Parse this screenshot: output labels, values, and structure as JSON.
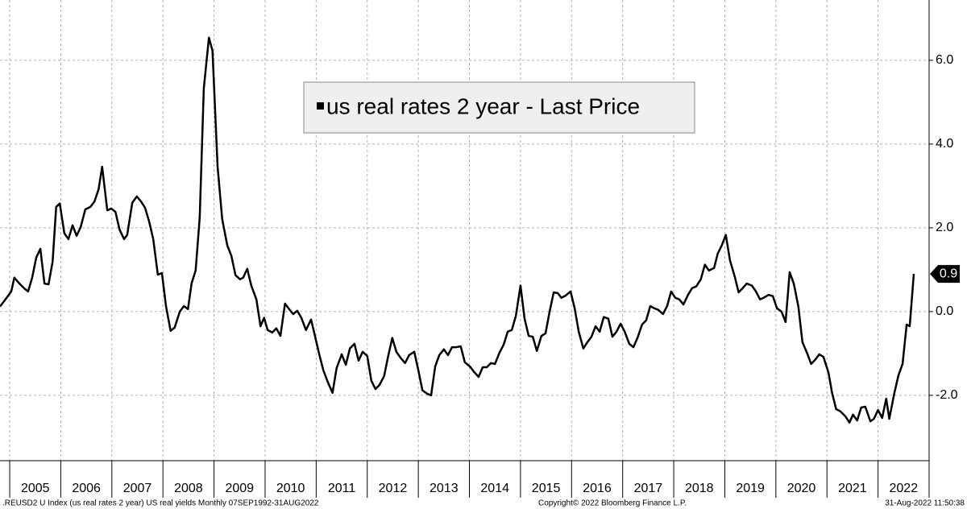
{
  "chart_data": {
    "type": "line",
    "xlim": [
      2004.81,
      2023.0
    ],
    "ylim": [
      -3.56,
      7.44
    ],
    "xticks": [
      2005,
      2006,
      2007,
      2008,
      2009,
      2010,
      2011,
      2012,
      2013,
      2014,
      2015,
      2016,
      2017,
      2018,
      2019,
      2020,
      2021,
      2022
    ],
    "yticks": [
      {
        "value": 6,
        "label": "6.0"
      },
      {
        "value": 4,
        "label": "4.0"
      },
      {
        "value": 2,
        "label": "2.0"
      },
      {
        "value": 0,
        "label": "0.0"
      },
      {
        "value": -2,
        "label": "-2.0"
      }
    ],
    "grid": true,
    "legend": "top",
    "x": [
      2004.81,
      2004.94,
      2005.03,
      2005.09,
      2005.19,
      2005.28,
      2005.36,
      2005.44,
      2005.52,
      2005.6,
      2005.68,
      2005.76,
      2005.84,
      2005.91,
      2005.98,
      2006.07,
      2006.15,
      2006.23,
      2006.31,
      2006.39,
      2006.48,
      2006.58,
      2006.66,
      2006.74,
      2006.81,
      2006.91,
      2006.99,
      2007.07,
      2007.15,
      2007.24,
      2007.3,
      2007.4,
      2007.49,
      2007.57,
      2007.65,
      2007.73,
      2007.81,
      2007.9,
      2007.98,
      2008.06,
      2008.15,
      2008.23,
      2008.33,
      2008.41,
      2008.49,
      2008.56,
      2008.64,
      2008.72,
      2008.8,
      2008.9,
      2008.97,
      2009.07,
      2009.16,
      2009.26,
      2009.34,
      2009.42,
      2009.51,
      2009.57,
      2009.65,
      2009.73,
      2009.83,
      2009.91,
      2009.98,
      2010.05,
      2010.14,
      2010.22,
      2010.3,
      2010.39,
      2010.47,
      2010.55,
      2010.63,
      2010.71,
      2010.8,
      2010.9,
      2010.98,
      2011.06,
      2011.14,
      2011.23,
      2011.32,
      2011.4,
      2011.5,
      2011.58,
      2011.66,
      2011.75,
      2011.83,
      2011.91,
      2012.0,
      2012.08,
      2012.16,
      2012.24,
      2012.33,
      2012.41,
      2012.49,
      2012.57,
      2012.65,
      2012.74,
      2012.82,
      2012.92,
      2013.0,
      2013.08,
      2013.17,
      2013.25,
      2013.33,
      2013.41,
      2013.5,
      2013.58,
      2013.66,
      2013.74,
      2013.83,
      2013.91,
      2014.01,
      2014.09,
      2014.18,
      2014.26,
      2014.34,
      2014.42,
      2014.5,
      2014.59,
      2014.67,
      2014.75,
      2014.83,
      2014.91,
      2015.0,
      2015.08,
      2015.16,
      2015.24,
      2015.32,
      2015.41,
      2015.49,
      2015.57,
      2015.65,
      2015.73,
      2015.8,
      2015.88,
      2015.98,
      2016.06,
      2016.14,
      2016.23,
      2016.31,
      2016.39,
      2016.47,
      2016.55,
      2016.63,
      2016.72,
      2016.8,
      2016.88,
      2016.96,
      2017.04,
      2017.13,
      2017.21,
      2017.29,
      2017.38,
      2017.46,
      2017.54,
      2017.62,
      2017.7,
      2017.79,
      2017.87,
      2017.95,
      2018.03,
      2018.11,
      2018.19,
      2018.28,
      2018.36,
      2018.44,
      2018.53,
      2018.61,
      2018.69,
      2018.79,
      2018.86,
      2018.94,
      2019.02,
      2019.1,
      2019.2,
      2019.27,
      2019.35,
      2019.43,
      2019.53,
      2019.61,
      2019.69,
      2019.76,
      2019.86,
      2019.94,
      2020.02,
      2020.11,
      2020.19,
      2020.27,
      2020.35,
      2020.44,
      2020.52,
      2020.62,
      2020.69,
      2020.77,
      2020.85,
      2020.93,
      2021.03,
      2021.1,
      2021.18,
      2021.26,
      2021.36,
      2021.44,
      2021.51,
      2021.59,
      2021.67,
      2021.75,
      2021.85,
      2021.92,
      2022.0,
      2022.08,
      2022.16,
      2022.22,
      2022.32,
      2022.4,
      2022.48,
      2022.56,
      2022.62,
      2022.7
    ],
    "series": [
      {
        "name": "us real rates 2 year - Last Price",
        "color": "#000000",
        "values": [
          0.12,
          0.33,
          0.48,
          0.81,
          0.67,
          0.56,
          0.48,
          0.81,
          1.29,
          1.5,
          0.67,
          0.65,
          1.19,
          2.5,
          2.58,
          1.87,
          1.73,
          2.06,
          1.81,
          2.02,
          2.44,
          2.5,
          2.63,
          2.92,
          3.46,
          2.42,
          2.46,
          2.38,
          1.96,
          1.73,
          1.83,
          2.6,
          2.75,
          2.63,
          2.48,
          2.15,
          1.73,
          0.88,
          0.92,
          0.13,
          -0.46,
          -0.38,
          0.0,
          0.13,
          0.06,
          0.67,
          0.98,
          2.25,
          5.33,
          6.54,
          6.23,
          3.46,
          2.21,
          1.58,
          1.33,
          0.87,
          0.77,
          0.81,
          1.02,
          0.62,
          0.29,
          -0.35,
          -0.15,
          -0.44,
          -0.5,
          -0.4,
          -0.58,
          0.19,
          0.06,
          -0.06,
          0.02,
          -0.15,
          -0.44,
          -0.19,
          -0.6,
          -1.02,
          -1.4,
          -1.69,
          -1.94,
          -1.35,
          -1.02,
          -1.27,
          -0.88,
          -0.77,
          -1.17,
          -0.96,
          -1.06,
          -1.65,
          -1.85,
          -1.75,
          -1.54,
          -1.06,
          -0.63,
          -0.96,
          -1.1,
          -1.23,
          -1.04,
          -0.96,
          -1.4,
          -1.88,
          -1.96,
          -2.0,
          -1.31,
          -1.04,
          -0.9,
          -1.04,
          -0.85,
          -0.85,
          -0.83,
          -1.21,
          -1.31,
          -1.44,
          -1.56,
          -1.33,
          -1.33,
          -1.23,
          -1.25,
          -0.98,
          -0.79,
          -0.48,
          -0.44,
          -0.1,
          0.62,
          -0.17,
          -0.58,
          -0.6,
          -0.94,
          -0.58,
          -0.52,
          0.0,
          0.46,
          0.44,
          0.33,
          0.38,
          0.48,
          0.08,
          -0.48,
          -0.88,
          -0.73,
          -0.6,
          -0.35,
          -0.48,
          -0.13,
          -0.17,
          -0.6,
          -0.48,
          -0.29,
          -0.48,
          -0.77,
          -0.85,
          -0.63,
          -0.31,
          -0.21,
          0.13,
          0.08,
          0.04,
          -0.06,
          0.13,
          0.48,
          0.33,
          0.29,
          0.17,
          0.4,
          0.56,
          0.6,
          0.77,
          1.12,
          0.98,
          1.04,
          1.38,
          1.58,
          1.83,
          1.23,
          0.81,
          0.46,
          0.56,
          0.67,
          0.62,
          0.48,
          0.29,
          0.33,
          0.4,
          0.37,
          0.08,
          0.0,
          -0.25,
          0.94,
          0.67,
          0.12,
          -0.73,
          -1.02,
          -1.25,
          -1.15,
          -1.02,
          -1.08,
          -1.46,
          -1.94,
          -2.33,
          -2.38,
          -2.5,
          -2.65,
          -2.46,
          -2.6,
          -2.29,
          -2.27,
          -2.62,
          -2.56,
          -2.35,
          -2.54,
          -2.08,
          -2.56,
          -1.94,
          -1.52,
          -1.25,
          -0.31,
          -0.35,
          0.9
        ]
      }
    ]
  },
  "footer": {
    "left": ".REUSD2 U Index (us real rates 2 year) US real yields  Monthly 07SEP1992-31AUG2022",
    "center": "Copyright© 2022 Bloomberg Finance L.P.",
    "right": "31-Aug-2022 11:50:38"
  }
}
